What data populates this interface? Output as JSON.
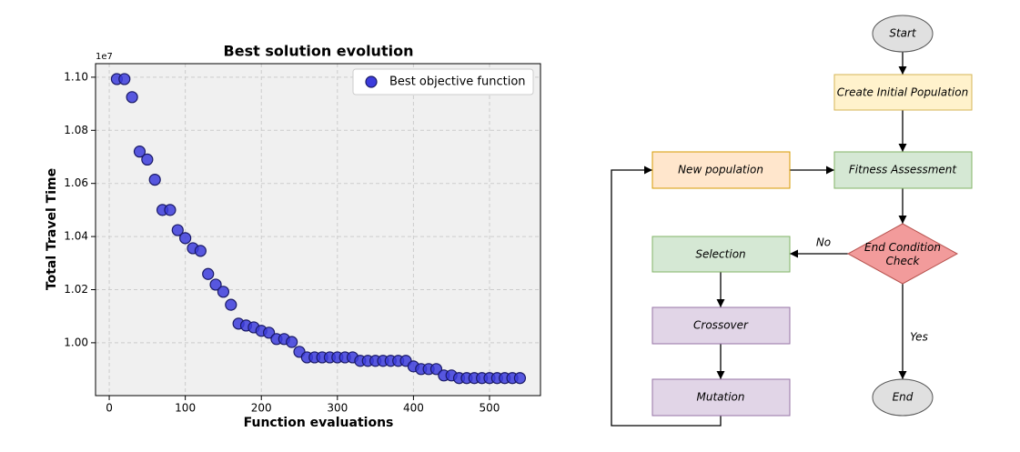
{
  "chart_data": {
    "type": "scatter",
    "title": "Best solution evolution",
    "xlabel": "Function evaluations",
    "ylabel": "Total Travel Time",
    "y_offset_label": "1e7",
    "legend": "upper right",
    "grid": true,
    "xlim": [
      -18,
      567
    ],
    "ylim": [
      0.9801,
      1.1051
    ],
    "xticks": [
      0,
      100,
      200,
      300,
      400,
      500
    ],
    "yticks": [
      {
        "value": 1.0,
        "label": "1.00"
      },
      {
        "value": 1.02,
        "label": "1.02"
      },
      {
        "value": 1.04,
        "label": "1.04"
      },
      {
        "value": 1.06,
        "label": "1.06"
      },
      {
        "value": 1.08,
        "label": "1.08"
      },
      {
        "value": 1.1,
        "label": "1.10"
      }
    ],
    "series": [
      {
        "name": "Best objective function",
        "color": "#3c3cdc",
        "x": [
          10,
          20,
          30,
          40,
          50,
          60,
          70,
          80,
          90,
          100,
          110,
          120,
          130,
          140,
          150,
          160,
          170,
          180,
          190,
          200,
          210,
          220,
          230,
          240,
          250,
          260,
          270,
          280,
          290,
          300,
          310,
          320,
          330,
          340,
          350,
          360,
          370,
          380,
          390,
          400,
          410,
          420,
          430,
          440,
          450,
          460,
          470,
          480,
          490,
          500,
          510,
          520,
          530,
          540
        ],
        "values": [
          1.0993,
          1.0993,
          1.0925,
          1.072,
          1.069,
          1.0614,
          1.05,
          1.05,
          1.0424,
          1.0394,
          1.0356,
          1.0346,
          1.0259,
          1.0219,
          1.0192,
          1.0143,
          1.0072,
          1.0065,
          1.0058,
          1.0045,
          1.0038,
          1.0014,
          1.0014,
          1.0003,
          0.9966,
          0.9945,
          0.9945,
          0.9945,
          0.9945,
          0.9945,
          0.9945,
          0.9945,
          0.9932,
          0.9932,
          0.9932,
          0.9932,
          0.9932,
          0.9932,
          0.9932,
          0.9911,
          0.9901,
          0.9901,
          0.9901,
          0.9877,
          0.9877,
          0.9867,
          0.9867,
          0.9867,
          0.9867,
          0.9867,
          0.9867,
          0.9867,
          0.9867,
          0.9867
        ]
      }
    ]
  },
  "flowchart": {
    "nodes": [
      {
        "label": "Start"
      },
      {
        "label": "Create Initial Population"
      },
      {
        "label": "Fitness Assessment"
      },
      {
        "label": "End Condition Check"
      },
      {
        "label": "New population"
      },
      {
        "label": "Selection"
      },
      {
        "label": "Crossover"
      },
      {
        "label": "Mutation"
      },
      {
        "label": "End"
      }
    ],
    "edge_labels": [
      "No",
      "Yes"
    ]
  }
}
